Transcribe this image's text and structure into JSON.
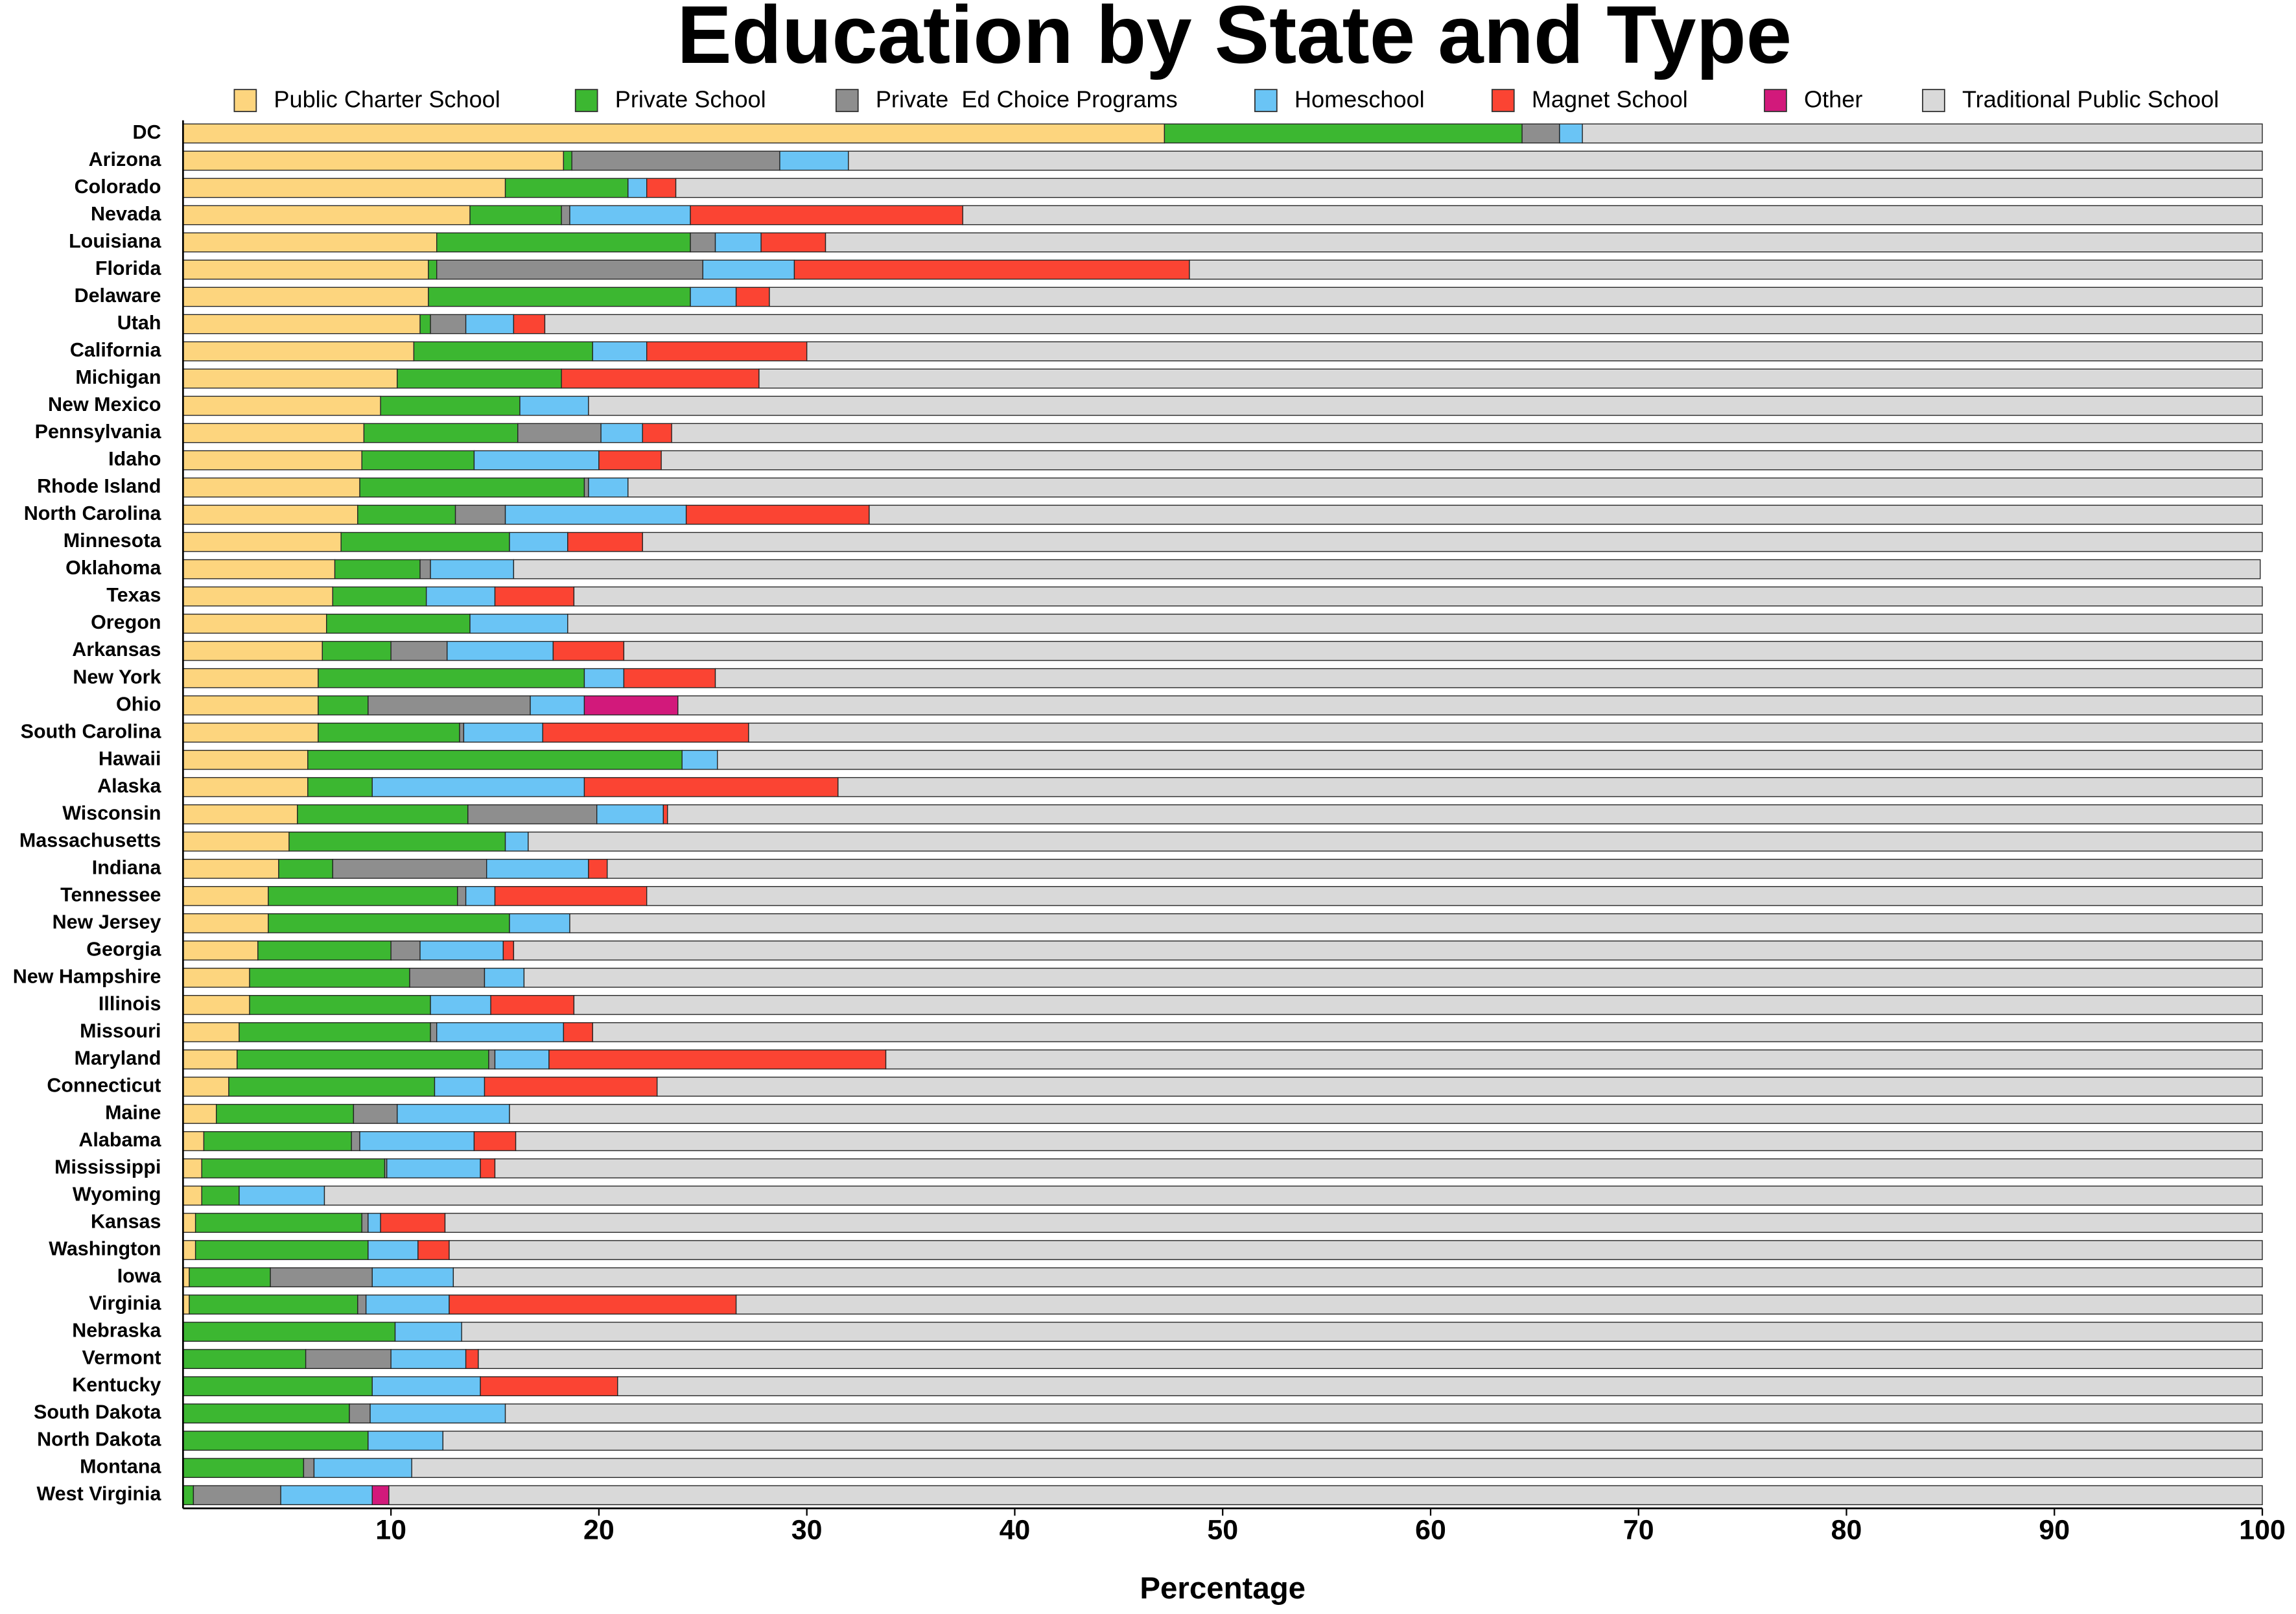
{
  "chart_data": {
    "type": "stacked-barh",
    "title": "Education by State and Type",
    "xlabel": "Percentage",
    "categories": [
      "DC",
      "Arizona",
      "Colorado",
      "Nevada",
      "Louisiana",
      "Florida",
      "Delaware",
      "Utah",
      "California",
      "Michigan",
      "New Mexico",
      "Pennsylvania",
      "Idaho",
      "Rhode Island",
      "North Carolina",
      "Minnesota",
      "Oklahoma",
      "Texas",
      "Oregon",
      "Arkansas",
      "New York",
      "Ohio",
      "South Carolina",
      "Hawaii",
      "Alaska",
      "Wisconsin",
      "Massachusetts",
      "Indiana",
      "Tennessee",
      "New Jersey",
      "Georgia",
      "New Hampshire",
      "Illinois",
      "Missouri",
      "Maryland",
      "Connecticut",
      "Maine",
      "Alabama",
      "Mississippi",
      "Wyoming",
      "Kansas",
      "Washington",
      "Iowa",
      "Virginia",
      "Nebraska",
      "Vermont",
      "Kentucky",
      "South Dakota",
      "North Dakota",
      "Montana",
      "West Virginia"
    ],
    "series": [
      {
        "name": "Public Charter School",
        "color": "#fdd57e",
        "values": [
          47.2,
          18.3,
          15.5,
          13.8,
          12.2,
          11.8,
          11.8,
          11.4,
          11.1,
          10.3,
          9.5,
          8.7,
          8.6,
          8.5,
          8.4,
          7.6,
          7.3,
          7.2,
          6.9,
          6.7,
          6.5,
          6.5,
          6.5,
          6.0,
          6.0,
          5.5,
          5.1,
          4.6,
          4.1,
          4.1,
          3.6,
          3.2,
          3.2,
          2.7,
          2.6,
          2.2,
          1.6,
          1.0,
          0.9,
          0.9,
          0.6,
          0.6,
          0.3,
          0.3,
          0,
          0,
          0,
          0,
          0,
          0,
          0
        ]
      },
      {
        "name": "Private School",
        "color": "#3cb731",
        "values": [
          17.2,
          0.4,
          5.9,
          4.4,
          12.2,
          0.4,
          12.6,
          0.5,
          8.6,
          7.9,
          6.7,
          7.4,
          5.4,
          10.8,
          4.7,
          8.1,
          4.1,
          4.5,
          6.9,
          3.3,
          12.8,
          2.4,
          6.8,
          18.0,
          3.1,
          8.2,
          10.4,
          2.6,
          9.1,
          11.6,
          6.4,
          7.7,
          8.7,
          9.2,
          12.1,
          9.9,
          6.6,
          7.1,
          8.8,
          1.8,
          8.0,
          8.3,
          3.9,
          8.1,
          10.2,
          5.9,
          9.1,
          8.0,
          8.9,
          5.8,
          0.5
        ]
      },
      {
        "name": "Private  Ed Choice Programs",
        "color": "#8e8e8e",
        "values": [
          1.8,
          10.0,
          0,
          0.4,
          1.2,
          12.8,
          0,
          1.7,
          0,
          0,
          0,
          4.0,
          0,
          0.2,
          2.4,
          0,
          0.5,
          0,
          0,
          2.7,
          0,
          7.8,
          0.2,
          0,
          0,
          6.2,
          0,
          7.4,
          0.4,
          0,
          1.4,
          3.6,
          0,
          0.3,
          0.3,
          0,
          2.1,
          0.4,
          0.1,
          0,
          0.3,
          0,
          4.9,
          0.4,
          0,
          4.1,
          0,
          1.0,
          0,
          0.5,
          4.2
        ]
      },
      {
        "name": "Homeschool",
        "color": "#6ac4f5",
        "values": [
          1.1,
          3.3,
          0.9,
          5.8,
          2.2,
          4.4,
          2.2,
          2.3,
          2.6,
          0,
          3.3,
          2.0,
          6.0,
          1.9,
          8.7,
          2.8,
          4.0,
          3.3,
          4.7,
          5.1,
          1.9,
          2.6,
          3.8,
          1.7,
          10.2,
          3.2,
          1.1,
          4.9,
          1.4,
          2.9,
          4.0,
          1.9,
          2.9,
          6.1,
          2.6,
          2.4,
          5.4,
          5.5,
          4.5,
          4.1,
          0.6,
          2.4,
          3.9,
          4.0,
          3.2,
          3.6,
          5.2,
          6.5,
          3.6,
          4.7,
          4.4
        ]
      },
      {
        "name": "Magnet School",
        "color": "#fb4433",
        "values": [
          0,
          0,
          1.4,
          13.1,
          3.1,
          19.0,
          1.6,
          1.5,
          7.7,
          9.5,
          0,
          1.4,
          3.0,
          0,
          8.8,
          3.6,
          0,
          3.8,
          0,
          3.4,
          4.4,
          0,
          9.9,
          0,
          12.2,
          0.2,
          0,
          0.9,
          7.3,
          0,
          0.5,
          0,
          4.0,
          1.4,
          16.2,
          8.3,
          0,
          2.0,
          0.7,
          0,
          3.1,
          1.5,
          0,
          13.8,
          0,
          0.6,
          6.6,
          0,
          0,
          0,
          0
        ]
      },
      {
        "name": "Other",
        "color": "#d2197b",
        "values": [
          0,
          0,
          0,
          0,
          0,
          0,
          0,
          0,
          0,
          0,
          0,
          0,
          0,
          0,
          0,
          0,
          0,
          0,
          0,
          0,
          0,
          4.5,
          0,
          0,
          0,
          0,
          0,
          0,
          0,
          0,
          0,
          0,
          0,
          0,
          0,
          0,
          0,
          0,
          0,
          0,
          0,
          0,
          0,
          0,
          0,
          0,
          0,
          0,
          0,
          0,
          0.8
        ]
      },
      {
        "name": "Traditional Public School",
        "color": "#d9d9d9",
        "values": [
          32.7,
          68.0,
          76.3,
          62.5,
          69.1,
          51.6,
          71.8,
          82.6,
          70.0,
          72.3,
          80.5,
          76.5,
          77.0,
          78.6,
          67.0,
          77.9,
          84.0,
          81.2,
          81.5,
          78.8,
          74.4,
          76.2,
          72.8,
          74.3,
          68.5,
          76.7,
          83.4,
          79.6,
          77.7,
          81.4,
          84.1,
          83.6,
          81.2,
          80.3,
          66.2,
          77.2,
          84.3,
          84.0,
          85.0,
          93.2,
          87.4,
          87.2,
          87.0,
          73.4,
          86.6,
          85.8,
          79.1,
          84.5,
          87.5,
          89.0,
          90.1
        ]
      }
    ],
    "xlim": [
      0,
      100
    ],
    "xticks": [
      10,
      20,
      30,
      40,
      50,
      60,
      70,
      80,
      90,
      100
    ],
    "legend": "top"
  }
}
